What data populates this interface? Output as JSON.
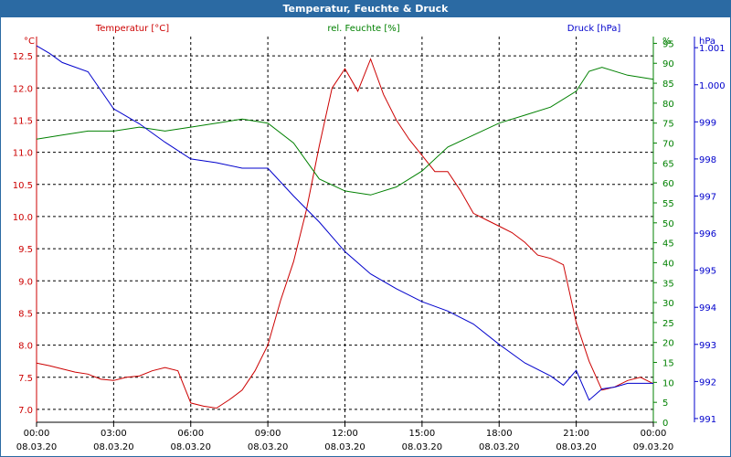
{
  "window": {
    "title": "Temperatur, Feuchte & Druck"
  },
  "colors": {
    "title_bg": "#2b6aa3",
    "temperature": "#cc0000",
    "humidity": "#008000",
    "pressure": "#0000cc",
    "grid": "#000000"
  },
  "chart_data": {
    "type": "line",
    "title": "Temperatur, Feuchte & Druck",
    "grid": true,
    "x_ticks": [
      {
        "time": "00:00",
        "date": "08.03.20"
      },
      {
        "time": "03:00",
        "date": "08.03.20"
      },
      {
        "time": "06:00",
        "date": "08.03.20"
      },
      {
        "time": "09:00",
        "date": "08.03.20"
      },
      {
        "time": "12:00",
        "date": "08.03.20"
      },
      {
        "time": "15:00",
        "date": "08.03.20"
      },
      {
        "time": "18:00",
        "date": "08.03.20"
      },
      {
        "time": "21:00",
        "date": "08.03.20"
      },
      {
        "time": "00:00",
        "date": "09.03.20"
      }
    ],
    "xlim_hours": [
      0,
      24
    ],
    "axes": {
      "temperature": {
        "label": "Temperatur [°C]",
        "unit": "°C",
        "ylim": [
          6.8,
          12.8
        ],
        "ticks": [
          "12.5",
          "12.0",
          "11.5",
          "11.0",
          "10.5",
          "10.0",
          "9.5",
          "9.0",
          "8.5",
          "8.0",
          "7.5",
          "7.0"
        ]
      },
      "humidity": {
        "label": "rel. Feuchte [%]",
        "unit": "%",
        "ylim": [
          0,
          96.7
        ],
        "ticks": [
          "95",
          "90",
          "85",
          "80",
          "75",
          "70",
          "65",
          "60",
          "55",
          "50",
          "45",
          "40",
          "35",
          "30",
          "25",
          "20",
          "15",
          "10",
          "5",
          "0"
        ]
      },
      "pressure": {
        "label": "Druck [hPa]",
        "unit": "hPa",
        "ylim": [
          990.9,
          1001.3
        ],
        "ticks": [
          "1.001",
          "1.000",
          "999",
          "998",
          "997",
          "996",
          "995",
          "994",
          "993",
          "992",
          "991"
        ]
      }
    },
    "series": [
      {
        "name": "Temperatur [°C]",
        "axis": "temperature",
        "points": [
          [
            0,
            7.72
          ],
          [
            0.5,
            7.68
          ],
          [
            1,
            7.63
          ],
          [
            1.5,
            7.58
          ],
          [
            2,
            7.55
          ],
          [
            2.5,
            7.47
          ],
          [
            3,
            7.45
          ],
          [
            3.5,
            7.5
          ],
          [
            4,
            7.52
          ],
          [
            4.5,
            7.6
          ],
          [
            5,
            7.65
          ],
          [
            5.5,
            7.6
          ],
          [
            6,
            7.1
          ],
          [
            6.5,
            7.05
          ],
          [
            7,
            7.02
          ],
          [
            7.5,
            7.15
          ],
          [
            8,
            7.3
          ],
          [
            8.5,
            7.6
          ],
          [
            9,
            8.0
          ],
          [
            9.5,
            8.7
          ],
          [
            10,
            9.3
          ],
          [
            10.5,
            10.1
          ],
          [
            11,
            11.1
          ],
          [
            11.5,
            12.0
          ],
          [
            12,
            12.3
          ],
          [
            12.5,
            11.95
          ],
          [
            13,
            12.45
          ],
          [
            13.5,
            11.9
          ],
          [
            14,
            11.5
          ],
          [
            14.5,
            11.2
          ],
          [
            15,
            10.95
          ],
          [
            15.5,
            10.7
          ],
          [
            16,
            10.7
          ],
          [
            16.5,
            10.4
          ],
          [
            17,
            10.05
          ],
          [
            17.5,
            9.95
          ],
          [
            18,
            9.85
          ],
          [
            18.5,
            9.75
          ],
          [
            19,
            9.6
          ],
          [
            19.5,
            9.4
          ],
          [
            20,
            9.35
          ],
          [
            20.5,
            9.25
          ],
          [
            21,
            8.35
          ],
          [
            21.5,
            7.75
          ],
          [
            22,
            7.3
          ],
          [
            22.5,
            7.35
          ],
          [
            23,
            7.45
          ],
          [
            23.5,
            7.5
          ],
          [
            24,
            7.4
          ]
        ]
      },
      {
        "name": "rel. Feuchte [%]",
        "axis": "humidity",
        "points": [
          [
            0,
            71
          ],
          [
            1,
            72
          ],
          [
            2,
            73
          ],
          [
            3,
            73
          ],
          [
            4,
            74
          ],
          [
            5,
            73
          ],
          [
            6,
            74
          ],
          [
            7,
            75
          ],
          [
            8,
            76
          ],
          [
            9,
            75
          ],
          [
            10,
            70
          ],
          [
            11,
            61
          ],
          [
            12,
            58
          ],
          [
            13,
            57
          ],
          [
            14,
            59
          ],
          [
            15,
            63
          ],
          [
            16,
            69
          ],
          [
            17,
            72
          ],
          [
            18,
            75
          ],
          [
            19,
            77
          ],
          [
            20,
            79
          ],
          [
            21,
            83
          ],
          [
            21.5,
            88
          ],
          [
            22,
            89
          ],
          [
            23,
            87
          ],
          [
            24,
            86
          ]
        ]
      },
      {
        "name": "Druck [hPa]",
        "axis": "pressure",
        "points": [
          [
            0,
            1001.05
          ],
          [
            0.5,
            1000.85
          ],
          [
            1,
            1000.6
          ],
          [
            2,
            1000.35
          ],
          [
            3,
            999.35
          ],
          [
            4,
            998.95
          ],
          [
            5,
            998.45
          ],
          [
            6,
            998.0
          ],
          [
            7,
            997.9
          ],
          [
            8,
            997.75
          ],
          [
            9,
            997.75
          ],
          [
            10,
            997.0
          ],
          [
            11,
            996.3
          ],
          [
            12,
            995.5
          ],
          [
            13,
            994.9
          ],
          [
            14,
            994.5
          ],
          [
            15,
            994.15
          ],
          [
            16,
            993.9
          ],
          [
            17,
            993.55
          ],
          [
            18,
            993.0
          ],
          [
            19,
            992.5
          ],
          [
            20,
            992.15
          ],
          [
            20.5,
            991.9
          ],
          [
            21,
            992.3
          ],
          [
            21.5,
            991.5
          ],
          [
            22,
            991.8
          ],
          [
            22.5,
            991.85
          ],
          [
            23,
            991.95
          ],
          [
            24,
            991.95
          ]
        ]
      }
    ]
  }
}
